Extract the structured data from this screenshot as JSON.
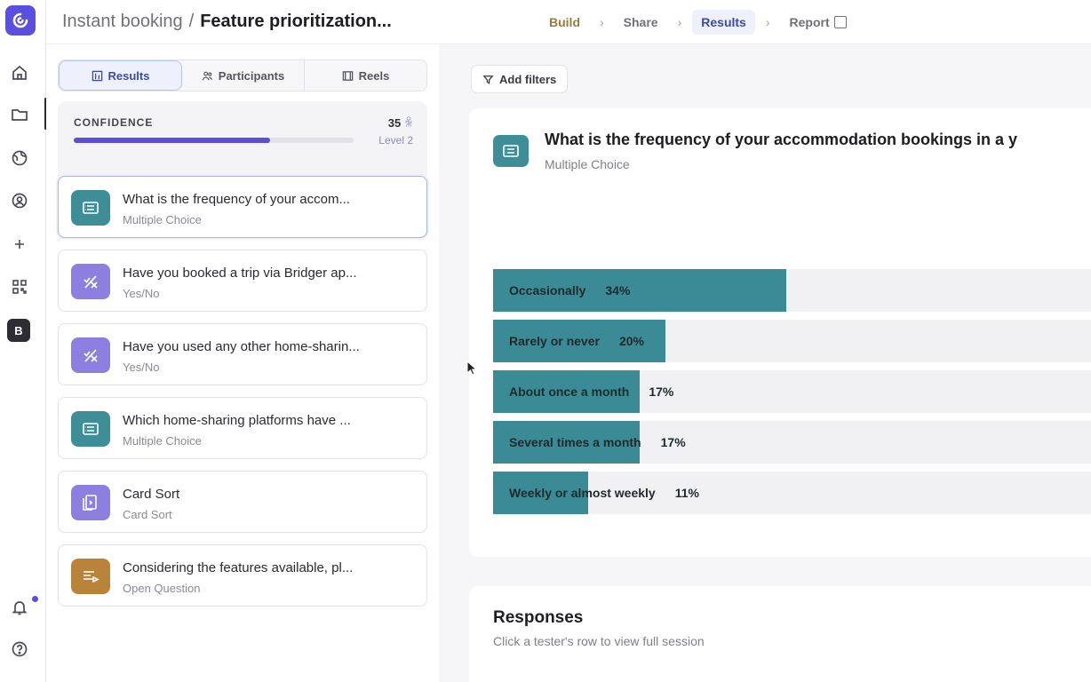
{
  "header": {
    "project": "Instant booking",
    "separator": "/",
    "title": "Feature prioritization...",
    "steps": [
      {
        "label": "Build",
        "state": "done"
      },
      {
        "label": "Share",
        "state": "todo"
      },
      {
        "label": "Results",
        "state": "active"
      },
      {
        "label": "Report",
        "state": "todo"
      }
    ]
  },
  "rail": {
    "icons": [
      "home-icon",
      "folder-icon",
      "globe-icon",
      "user-circle-icon",
      "plus-icon",
      "apps-grid-icon"
    ],
    "workspace_badge": "B",
    "bottom_icons": [
      "bell-icon",
      "help-icon"
    ]
  },
  "tabs": [
    {
      "label": "Results",
      "icon": "results-icon",
      "active": true
    },
    {
      "label": "Participants",
      "icon": "participants-icon",
      "active": false
    },
    {
      "label": "Reels",
      "icon": "reels-icon",
      "active": false
    }
  ],
  "confidence": {
    "label": "CONFIDENCE",
    "count": "35",
    "level": "Level 2",
    "progress": 0.7,
    "color": "#5a4fd6"
  },
  "questions": [
    {
      "title": "What is the frequency of your accom...",
      "type": "Multiple Choice",
      "icon": "list-icon",
      "color": "#3d8e97",
      "selected": true
    },
    {
      "title": "Have you booked a trip via Bridger ap...",
      "type": "Yes/No",
      "icon": "yes-no-icon",
      "color": "#8c7fe0",
      "selected": false
    },
    {
      "title": "Have you used any other home-sharin...",
      "type": "Yes/No",
      "icon": "yes-no-icon",
      "color": "#8c7fe0",
      "selected": false
    },
    {
      "title": "Which home-sharing platforms have ...",
      "type": "Multiple Choice",
      "icon": "list-icon",
      "color": "#3d8e97",
      "selected": false
    },
    {
      "title": "Card Sort",
      "type": "Card Sort",
      "icon": "card-sort-icon",
      "color": "#8c7fe0",
      "selected": false
    },
    {
      "title": "Considering the features available, pl...",
      "type": "Open Question",
      "icon": "open-question-icon",
      "color": "#b9843a",
      "selected": false
    }
  ],
  "main": {
    "filters_label": "Add filters",
    "question_title": "What is the frequency of your accommodation bookings in a y",
    "question_type": "Multiple Choice",
    "responses_title": "Responses",
    "responses_hint": "Click a tester's row to view full session"
  },
  "chart_data": {
    "type": "bar",
    "orientation": "horizontal",
    "categories": [
      "Occasionally",
      "Rarely or never",
      "About once a month",
      "Several times a month",
      "Weekly or almost weekly"
    ],
    "values": [
      34,
      20,
      17,
      17,
      11
    ],
    "value_labels": [
      "34%",
      "20%",
      "17%",
      "17%",
      "11%"
    ],
    "unit": "%",
    "xlim": [
      0,
      100
    ],
    "bar_color": "#3a8b95"
  }
}
